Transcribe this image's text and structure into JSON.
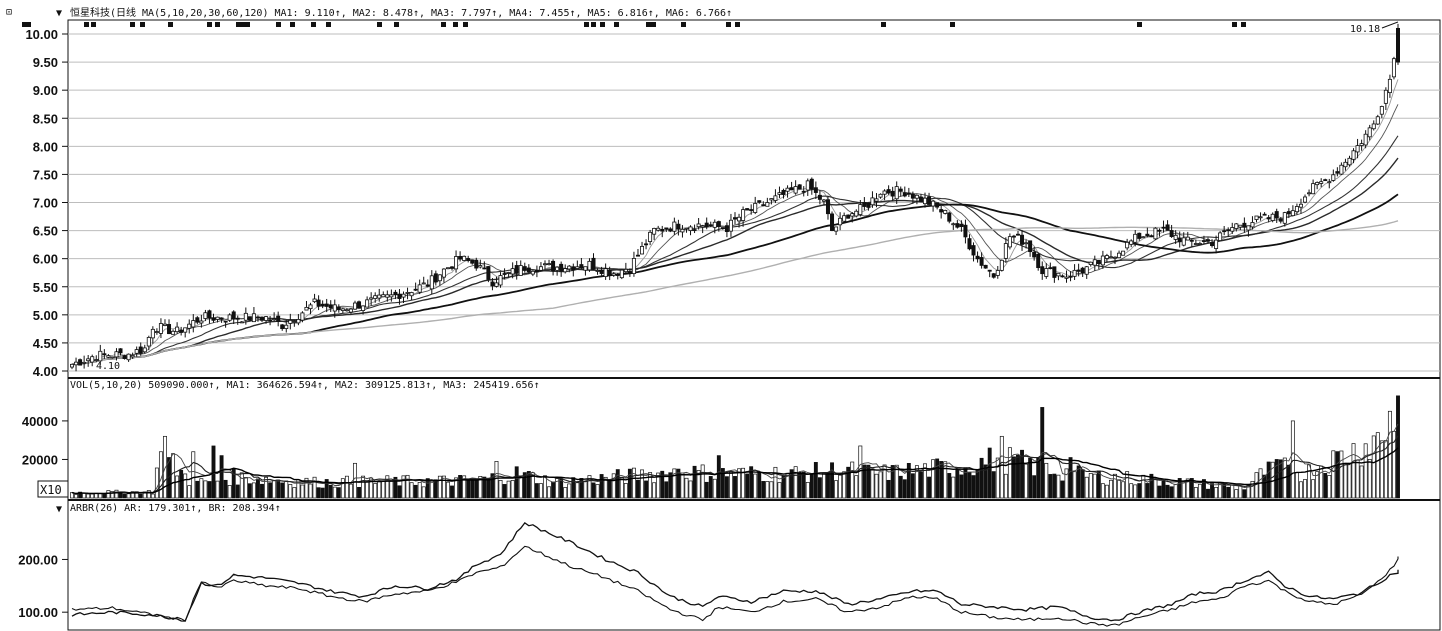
{
  "price_panel": {
    "header_icon": "⊡",
    "header_marker": "▼",
    "legend_text": "恒星科技(日线  MA(5,10,20,30,60,120)  MA1: 9.110↑, MA2: 8.478↑, MA3: 7.797↑, MA4: 7.455↑, MA5: 6.816↑, MA6: 6.766↑",
    "high_label": "10.18",
    "low_label": "4.10"
  },
  "volume_panel": {
    "legend_text": "VOL(5,10,20)  509090.000↑, MA1: 364626.594↑, MA2: 309125.813↑, MA3: 245419.656↑",
    "scale_label": "X10"
  },
  "arbr_panel": {
    "header_marker": "▼",
    "legend_text": "ARBR(26)  AR: 179.301↑, BR: 208.394↑"
  },
  "colors": {
    "ink": "#111111",
    "grid": "#bdbdbd",
    "ma_light": "#9a9a9a",
    "ma_dark": "#2a2a2a"
  },
  "chart_data": [
    {
      "type": "candlestick",
      "title": "恒星科技(日线",
      "ylim": [
        4.0,
        10.2
      ],
      "y_ticks": [
        "10.00",
        "9.50",
        "9.00",
        "8.50",
        "8.00",
        "7.50",
        "7.00",
        "6.50",
        "6.00",
        "5.50",
        "5.00",
        "4.50",
        "4.00"
      ],
      "grid": true,
      "close_anchors": [
        [
          0,
          4.12
        ],
        [
          6,
          4.28
        ],
        [
          14,
          4.3
        ],
        [
          18,
          4.4
        ],
        [
          20,
          4.8
        ],
        [
          26,
          4.7
        ],
        [
          32,
          4.95
        ],
        [
          40,
          4.95
        ],
        [
          48,
          4.95
        ],
        [
          52,
          4.82
        ],
        [
          56,
          5.0
        ],
        [
          60,
          5.2
        ],
        [
          66,
          5.1
        ],
        [
          72,
          5.2
        ],
        [
          80,
          5.35
        ],
        [
          88,
          5.55
        ],
        [
          92,
          5.8
        ],
        [
          96,
          6.0
        ],
        [
          100,
          5.9
        ],
        [
          104,
          5.6
        ],
        [
          112,
          5.85
        ],
        [
          120,
          5.85
        ],
        [
          128,
          5.9
        ],
        [
          134,
          5.75
        ],
        [
          138,
          5.85
        ],
        [
          144,
          6.5
        ],
        [
          150,
          6.6
        ],
        [
          156,
          6.6
        ],
        [
          162,
          6.55
        ],
        [
          166,
          6.8
        ],
        [
          172,
          7.0
        ],
        [
          178,
          7.2
        ],
        [
          182,
          7.3
        ],
        [
          186,
          7.0
        ],
        [
          188,
          6.5
        ],
        [
          192,
          6.8
        ],
        [
          196,
          6.9
        ],
        [
          200,
          7.2
        ],
        [
          206,
          7.2
        ],
        [
          212,
          7.0
        ],
        [
          216,
          6.8
        ],
        [
          220,
          6.5
        ],
        [
          224,
          6.0
        ],
        [
          228,
          5.7
        ],
        [
          232,
          6.4
        ],
        [
          236,
          6.3
        ],
        [
          240,
          5.8
        ],
        [
          246,
          5.7
        ],
        [
          250,
          5.8
        ],
        [
          256,
          6.0
        ],
        [
          264,
          6.4
        ],
        [
          270,
          6.5
        ],
        [
          276,
          6.3
        ],
        [
          282,
          6.3
        ],
        [
          288,
          6.6
        ],
        [
          294,
          6.7
        ],
        [
          300,
          6.75
        ],
        [
          306,
          7.2
        ],
        [
          312,
          7.5
        ],
        [
          318,
          8.0
        ],
        [
          322,
          8.4
        ],
        [
          326,
          9.2
        ],
        [
          328,
          10.1
        ]
      ],
      "n_candles": 329
    },
    {
      "type": "bar",
      "title": "VOL(5,10,20)",
      "ylim": [
        0,
        55000
      ],
      "y_ticks": [
        "40000",
        "20000"
      ],
      "volume_anchors": [
        [
          0,
          3000
        ],
        [
          20,
          3500
        ],
        [
          22,
          26000
        ],
        [
          30,
          8000
        ],
        [
          40,
          12000
        ],
        [
          60,
          9000
        ],
        [
          80,
          9500
        ],
        [
          100,
          10000
        ],
        [
          110,
          14000
        ],
        [
          120,
          9000
        ],
        [
          140,
          13000
        ],
        [
          150,
          15000
        ],
        [
          160,
          14000
        ],
        [
          180,
          14000
        ],
        [
          190,
          16000
        ],
        [
          200,
          14000
        ],
        [
          220,
          18000
        ],
        [
          230,
          23000
        ],
        [
          240,
          17000
        ],
        [
          250,
          13000
        ],
        [
          270,
          10000
        ],
        [
          290,
          6000
        ],
        [
          295,
          15000
        ],
        [
          300,
          17000
        ],
        [
          305,
          14000
        ],
        [
          310,
          20000
        ],
        [
          320,
          30000
        ],
        [
          328,
          42000
        ]
      ],
      "spikes": [
        [
          22,
          24000
        ],
        [
          23,
          32000
        ],
        [
          30,
          24000
        ],
        [
          35,
          27000
        ],
        [
          37,
          22000
        ],
        [
          70,
          18000
        ],
        [
          105,
          19000
        ],
        [
          150,
          15000
        ],
        [
          160,
          22000
        ],
        [
          195,
          27000
        ],
        [
          230,
          32000
        ],
        [
          240,
          47000
        ],
        [
          247,
          21000
        ],
        [
          298,
          20000
        ],
        [
          302,
          40000
        ],
        [
          326,
          45000
        ],
        [
          328,
          53000
        ]
      ],
      "series": [
        {
          "name": "MA1",
          "value": 364626.594
        },
        {
          "name": "MA2",
          "value": 309125.813
        },
        {
          "name": "MA3",
          "value": 245419.656
        }
      ]
    },
    {
      "type": "line",
      "title": "ARBR(26)",
      "ylim": [
        70,
        290
      ],
      "y_ticks": [
        "200.00",
        "100.00"
      ],
      "series": [
        {
          "name": "AR",
          "anchors": [
            [
              0,
              95
            ],
            [
              10,
              100
            ],
            [
              20,
              95
            ],
            [
              28,
              85
            ],
            [
              32,
              155
            ],
            [
              36,
              150
            ],
            [
              40,
              170
            ],
            [
              48,
              165
            ],
            [
              56,
              155
            ],
            [
              64,
              140
            ],
            [
              72,
              130
            ],
            [
              80,
              150
            ],
            [
              88,
              145
            ],
            [
              96,
              165
            ],
            [
              100,
              190
            ],
            [
              106,
              210
            ],
            [
              112,
              270
            ],
            [
              118,
              250
            ],
            [
              124,
              230
            ],
            [
              132,
              200
            ],
            [
              140,
              175
            ],
            [
              148,
              130
            ],
            [
              156,
              110
            ],
            [
              160,
              130
            ],
            [
              168,
              120
            ],
            [
              176,
              140
            ],
            [
              184,
              140
            ],
            [
              192,
              115
            ],
            [
              200,
              125
            ],
            [
              208,
              140
            ],
            [
              214,
              140
            ],
            [
              220,
              115
            ],
            [
              228,
              110
            ],
            [
              236,
              105
            ],
            [
              244,
              110
            ],
            [
              252,
              90
            ],
            [
              258,
              85
            ],
            [
              264,
              100
            ],
            [
              272,
              115
            ],
            [
              278,
              135
            ],
            [
              284,
              140
            ],
            [
              290,
              160
            ],
            [
              296,
              175
            ],
            [
              300,
              150
            ],
            [
              306,
              130
            ],
            [
              312,
              125
            ],
            [
              318,
              135
            ],
            [
              322,
              150
            ],
            [
              326,
              170
            ],
            [
              329,
              179
            ]
          ]
        },
        {
          "name": "BR",
          "anchors": [
            [
              0,
              105
            ],
            [
              10,
              108
            ],
            [
              20,
              95
            ],
            [
              28,
              85
            ],
            [
              32,
              160
            ],
            [
              36,
              145
            ],
            [
              40,
              160
            ],
            [
              48,
              150
            ],
            [
              56,
              145
            ],
            [
              64,
              130
            ],
            [
              72,
              120
            ],
            [
              80,
              135
            ],
            [
              88,
              140
            ],
            [
              96,
              160
            ],
            [
              100,
              175
            ],
            [
              106,
              185
            ],
            [
              112,
              225
            ],
            [
              118,
              205
            ],
            [
              124,
              185
            ],
            [
              132,
              165
            ],
            [
              140,
              140
            ],
            [
              148,
              105
            ],
            [
              156,
              85
            ],
            [
              160,
              110
            ],
            [
              168,
              100
            ],
            [
              176,
              120
            ],
            [
              184,
              125
            ],
            [
              192,
              100
            ],
            [
              200,
              110
            ],
            [
              208,
              130
            ],
            [
              214,
              125
            ],
            [
              220,
              100
            ],
            [
              228,
              90
            ],
            [
              236,
              85
            ],
            [
              244,
              90
            ],
            [
              252,
              78
            ],
            [
              258,
              75
            ],
            [
              264,
              90
            ],
            [
              272,
              105
            ],
            [
              278,
              120
            ],
            [
              284,
              125
            ],
            [
              290,
              150
            ],
            [
              296,
              160
            ],
            [
              300,
              140
            ],
            [
              306,
              120
            ],
            [
              312,
              115
            ],
            [
              318,
              130
            ],
            [
              322,
              150
            ],
            [
              326,
              180
            ],
            [
              329,
              208
            ]
          ]
        }
      ]
    }
  ]
}
